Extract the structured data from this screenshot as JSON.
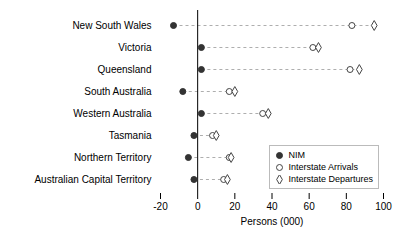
{
  "chart_data": {
    "type": "dot",
    "orientation": "horizontal",
    "categories": [
      "New South Wales",
      "Victoria",
      "Queensland",
      "South Australia",
      "Western Australia",
      "Tasmania",
      "Northern Territory",
      "Australian Capital Territory"
    ],
    "series": [
      {
        "name": "NIM",
        "color": "#333333",
        "marker": "circle",
        "values": [
          -13,
          2,
          2,
          -8,
          2,
          -2,
          -5,
          -2
        ]
      },
      {
        "name": "Interstate Arrivals",
        "color": "#444444",
        "marker": "circle-open",
        "values": [
          83,
          62,
          82,
          17,
          35,
          8,
          17,
          14
        ]
      },
      {
        "name": "Interstate Departures",
        "color": "#444444",
        "marker": "diamond-open",
        "values": [
          95,
          65,
          87,
          20,
          38,
          10,
          18,
          16
        ]
      }
    ],
    "xlim": [
      -20,
      100
    ],
    "xticks": [
      -20,
      0,
      20,
      40,
      60,
      80,
      100
    ],
    "xlabel": "Persons (000)",
    "legend": "lower right",
    "grid": false
  }
}
